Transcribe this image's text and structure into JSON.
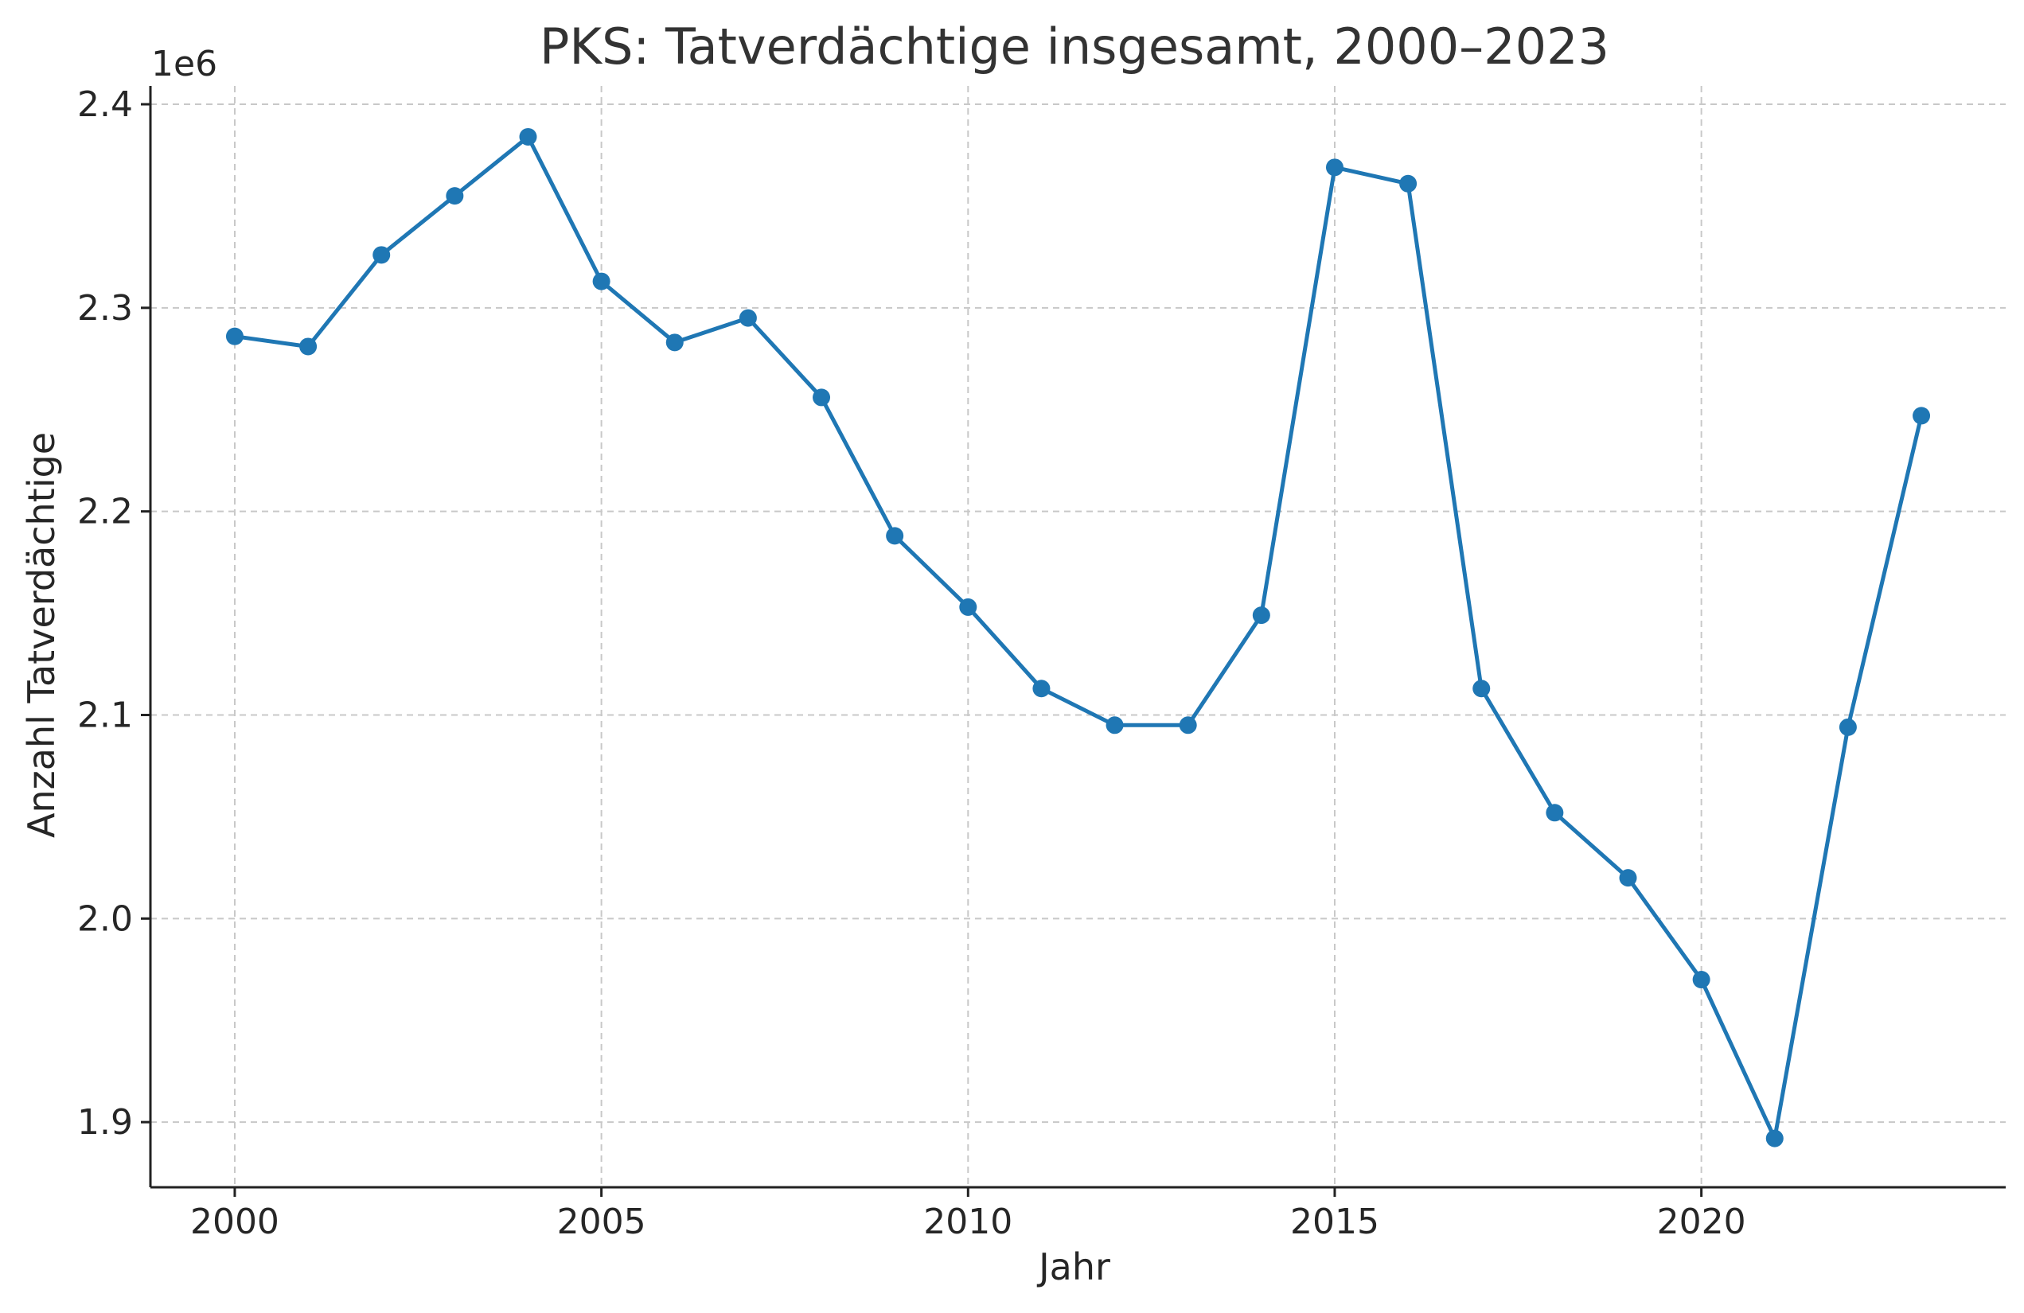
{
  "chart_data": {
    "type": "line",
    "title": "PKS: Tatverdächtige insgesamt, 2000–2023",
    "xlabel": "Jahr",
    "ylabel": "Anzahl Tatverdächtige",
    "y_multiplier_label": "1e6",
    "x_ticks": [
      2000,
      2005,
      2010,
      2015,
      2020
    ],
    "x_tick_labels": [
      "2000",
      "2005",
      "2010",
      "2015",
      "2020"
    ],
    "y_ticks": [
      1.9,
      2.0,
      2.1,
      2.2,
      2.3,
      2.4
    ],
    "y_tick_labels": [
      "1.9",
      "2.0",
      "2.1",
      "2.2",
      "2.3",
      "2.4"
    ],
    "xlim": [
      1998.85,
      2024.15
    ],
    "ylim": [
      1.868,
      2.409
    ],
    "grid": true,
    "legend": "none",
    "series": [
      {
        "color": "#1f77b4",
        "x": [
          2000,
          2001,
          2002,
          2003,
          2004,
          2005,
          2006,
          2007,
          2008,
          2009,
          2010,
          2011,
          2012,
          2013,
          2014,
          2015,
          2016,
          2017,
          2018,
          2019,
          2020,
          2021,
          2022,
          2023
        ],
        "values": [
          2.286,
          2.281,
          2.326,
          2.355,
          2.384,
          2.313,
          2.283,
          2.295,
          2.256,
          2.188,
          2.153,
          2.113,
          2.095,
          2.095,
          2.149,
          2.369,
          2.361,
          2.113,
          2.052,
          2.02,
          1.97,
          1.892,
          2.094,
          2.247
        ]
      }
    ]
  }
}
